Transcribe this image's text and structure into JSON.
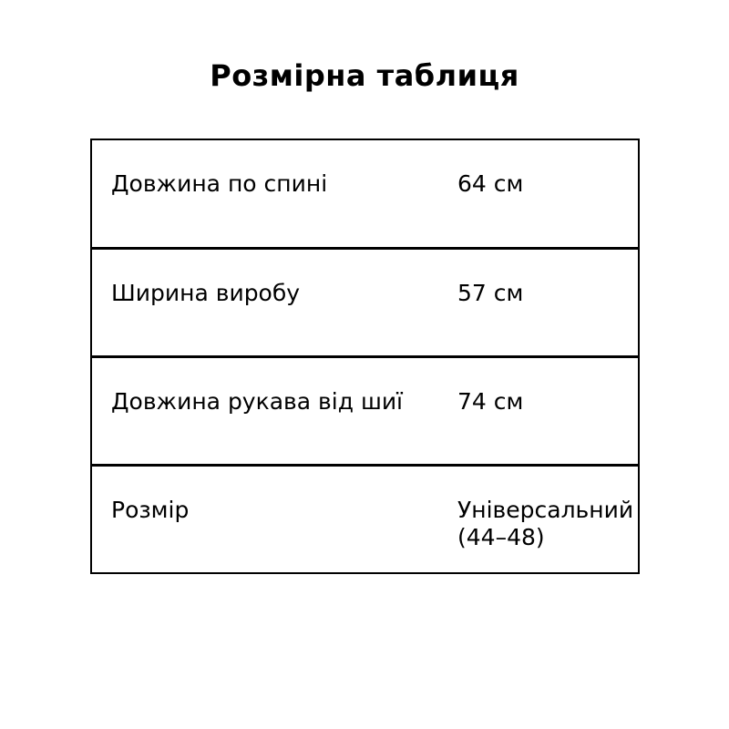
{
  "page": {
    "title": "Розмірна таблиця"
  },
  "size_table": {
    "rows": [
      {
        "label": "Довжина по спині",
        "value": "64 см"
      },
      {
        "label": "Ширина виробу",
        "value": "57 см"
      },
      {
        "label": "Довжина рукава від шиї",
        "value": "74 см"
      },
      {
        "label": "Розмір",
        "value": "Універсальний (44–48)"
      }
    ]
  },
  "colors": {
    "background": "#ffffff",
    "text": "#000000",
    "border": "#000000"
  }
}
